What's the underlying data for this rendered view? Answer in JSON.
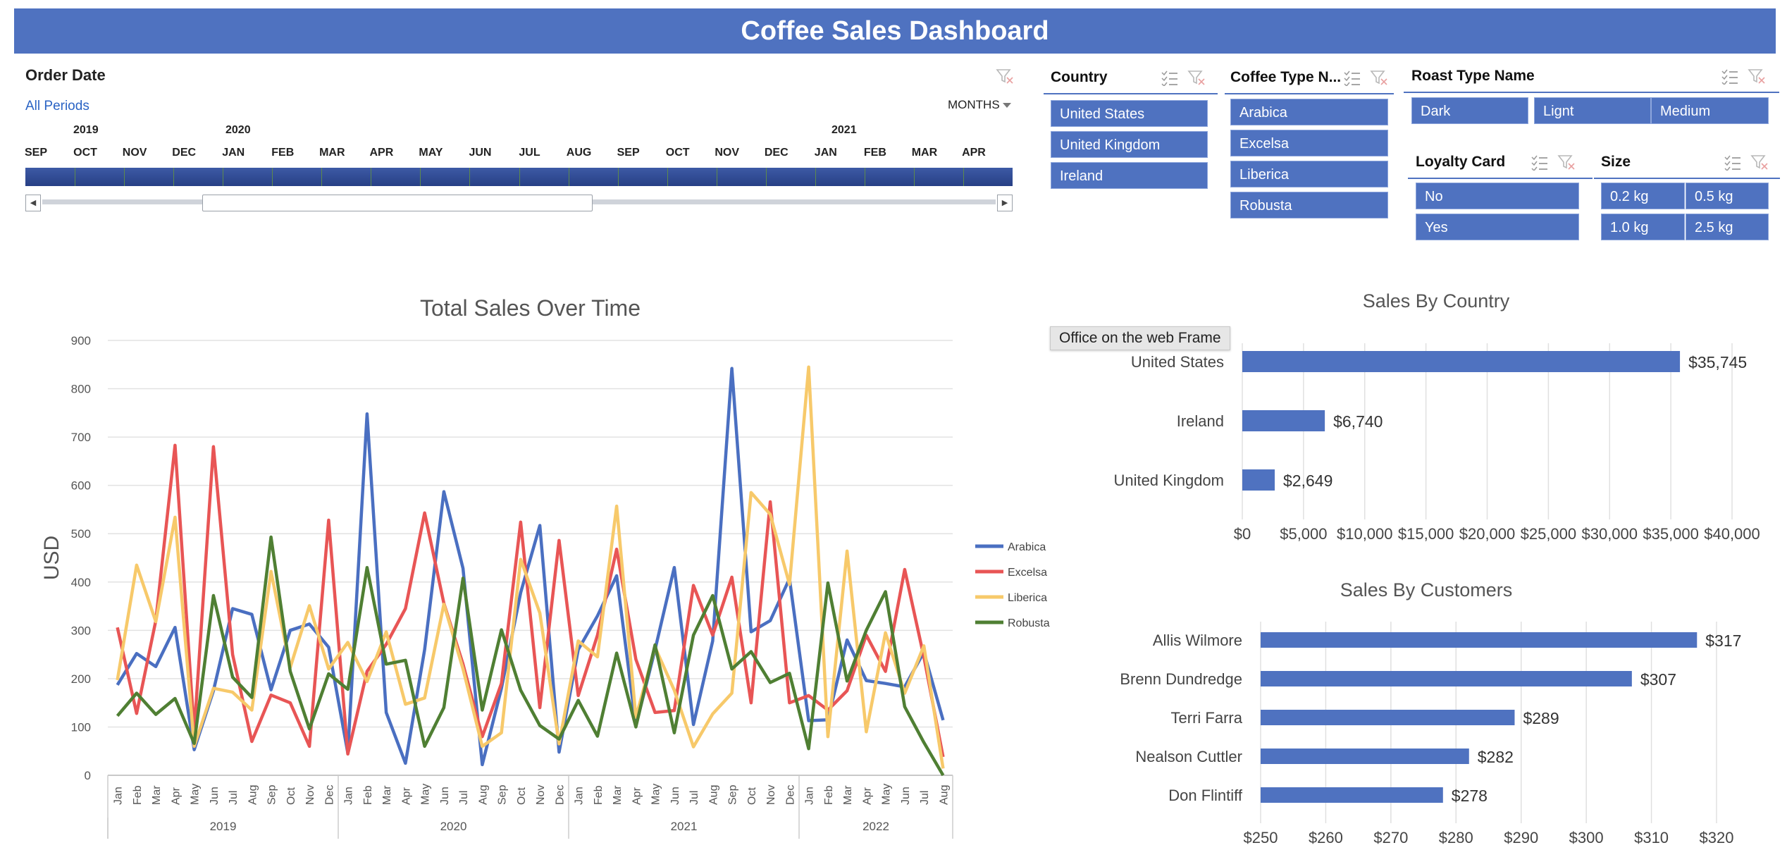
{
  "header": {
    "title": "Coffee Sales Dashboard"
  },
  "timeline": {
    "label": "Order Date",
    "all_periods": "All Periods",
    "months_dropdown": "MONTHS",
    "years": [
      {
        "label": "2019"
      },
      {
        "label": "2020"
      },
      {
        "label": "2021"
      }
    ],
    "months": [
      "SEP",
      "OCT",
      "NOV",
      "DEC",
      "JAN",
      "FEB",
      "MAR",
      "APR",
      "MAY",
      "JUN",
      "JUL",
      "AUG",
      "SEP",
      "OCT",
      "NOV",
      "DEC",
      "JAN",
      "FEB",
      "MAR",
      "APR"
    ],
    "colors": {
      "bar": "#2f4a94",
      "accent": "#4f72c0"
    }
  },
  "slicers": {
    "country": {
      "title": "Country",
      "items": [
        "United States",
        "United Kingdom",
        "Ireland"
      ]
    },
    "coffee_type": {
      "title": "Coffee Type N...",
      "items": [
        "Arabica",
        "Excelsa",
        "Liberica",
        "Robusta"
      ]
    },
    "roast_type": {
      "title": "Roast Type Name",
      "items": [
        "Dark",
        "Lignt",
        "Medium"
      ]
    },
    "loyalty_card": {
      "title": "Loyalty Card",
      "items": [
        "No",
        "Yes"
      ]
    },
    "size": {
      "title": "Size",
      "items": [
        "0.2 kg",
        "0.5 kg",
        "1.0 kg",
        "2.5 kg"
      ]
    }
  },
  "tooltip": "Office on the web Frame",
  "chart_data": [
    {
      "type": "line",
      "title": "Total Sales Over Time",
      "ylabel": "USD",
      "ylim": [
        0,
        900
      ],
      "yticks": [
        0,
        100,
        200,
        300,
        400,
        500,
        600,
        700,
        800,
        900
      ],
      "x": [
        "Jan",
        "Feb",
        "Mar",
        "Apr",
        "May",
        "Jun",
        "Jul",
        "Aug",
        "Sep",
        "Oct",
        "Nov",
        "Dec",
        "Jan",
        "Feb",
        "Mar",
        "Apr",
        "May",
        "Jun",
        "Jul",
        "Aug",
        "Sep",
        "Oct",
        "Nov",
        "Dec",
        "Jan",
        "Feb",
        "Mar",
        "Apr",
        "May",
        "Jun",
        "Jul",
        "Aug",
        "Sep",
        "Oct",
        "Nov",
        "Dec",
        "Jan",
        "Feb",
        "Mar",
        "Apr",
        "May",
        "Jun",
        "Jul",
        "Aug"
      ],
      "year_groups": [
        "2019",
        "2020",
        "2021",
        "2022"
      ],
      "legend_position": "right",
      "series": [
        {
          "name": "Arabica",
          "color": "#4a6fc1",
          "values": [
            187,
            252,
            225,
            306,
            53,
            175,
            345,
            333,
            177,
            300,
            313,
            265,
            46,
            748,
            130,
            25,
            260,
            587,
            428,
            22,
            180,
            378,
            517,
            48,
            260,
            330,
            413,
            103,
            260,
            430,
            105,
            278,
            842,
            297,
            320,
            407,
            113,
            115,
            280,
            196,
            190,
            183,
            255,
            114
          ]
        },
        {
          "name": "Excelsa",
          "color": "#e85555",
          "values": [
            306,
            128,
            320,
            683,
            90,
            680,
            250,
            70,
            166,
            150,
            60,
            528,
            44,
            215,
            271,
            345,
            543,
            356,
            230,
            80,
            190,
            524,
            140,
            486,
            165,
            290,
            468,
            240,
            130,
            134,
            393,
            290,
            410,
            150,
            566,
            150,
            165,
            135,
            175,
            290,
            215,
            426,
            245,
            38
          ]
        },
        {
          "name": "Liberica",
          "color": "#f7c96a",
          "values": [
            197,
            435,
            318,
            534,
            60,
            180,
            172,
            135,
            422,
            223,
            351,
            220,
            275,
            194,
            297,
            147,
            160,
            354,
            220,
            60,
            88,
            447,
            336,
            65,
            278,
            245,
            557,
            120,
            265,
            176,
            59,
            127,
            170,
            585,
            540,
            395,
            845,
            80,
            464,
            90,
            295,
            170,
            268,
            14
          ]
        },
        {
          "name": "Robusta",
          "color": "#4f7f33",
          "values": [
            123,
            170,
            126,
            159,
            66,
            372,
            203,
            161,
            493,
            215,
            96,
            210,
            178,
            430,
            230,
            238,
            60,
            140,
            408,
            135,
            301,
            176,
            103,
            75,
            155,
            81,
            253,
            100,
            270,
            88,
            290,
            372,
            220,
            256,
            192,
            211,
            55,
            398,
            195,
            300,
            380,
            142,
            68,
            0
          ]
        }
      ]
    },
    {
      "type": "bar",
      "orientation": "horizontal",
      "title": "Sales By Country",
      "categories": [
        "United States",
        "Ireland",
        "United Kingdom"
      ],
      "values": [
        35745,
        6740,
        2649
      ],
      "data_labels": [
        "$35,745",
        "$6,740",
        "$2,649"
      ],
      "xlim": [
        0,
        40000
      ],
      "xticks": [
        "$0",
        "$5,000",
        "$10,000",
        "$15,000",
        "$20,000",
        "$25,000",
        "$30,000",
        "$35,000",
        "$40,000"
      ],
      "color": "#4f72c0"
    },
    {
      "type": "bar",
      "orientation": "horizontal",
      "title": "Sales By Customers",
      "categories": [
        "Allis Wilmore",
        "Brenn Dundredge",
        "Terri Farra",
        "Nealson Cuttler",
        "Don Flintiff"
      ],
      "values": [
        317,
        307,
        289,
        282,
        278
      ],
      "data_labels": [
        "$317",
        "$307",
        "$289",
        "$282",
        "$278"
      ],
      "xlim": [
        250,
        320
      ],
      "xticks": [
        "$250",
        "$260",
        "$270",
        "$280",
        "$290",
        "$300",
        "$310",
        "$320"
      ],
      "color": "#4f72c0"
    }
  ]
}
